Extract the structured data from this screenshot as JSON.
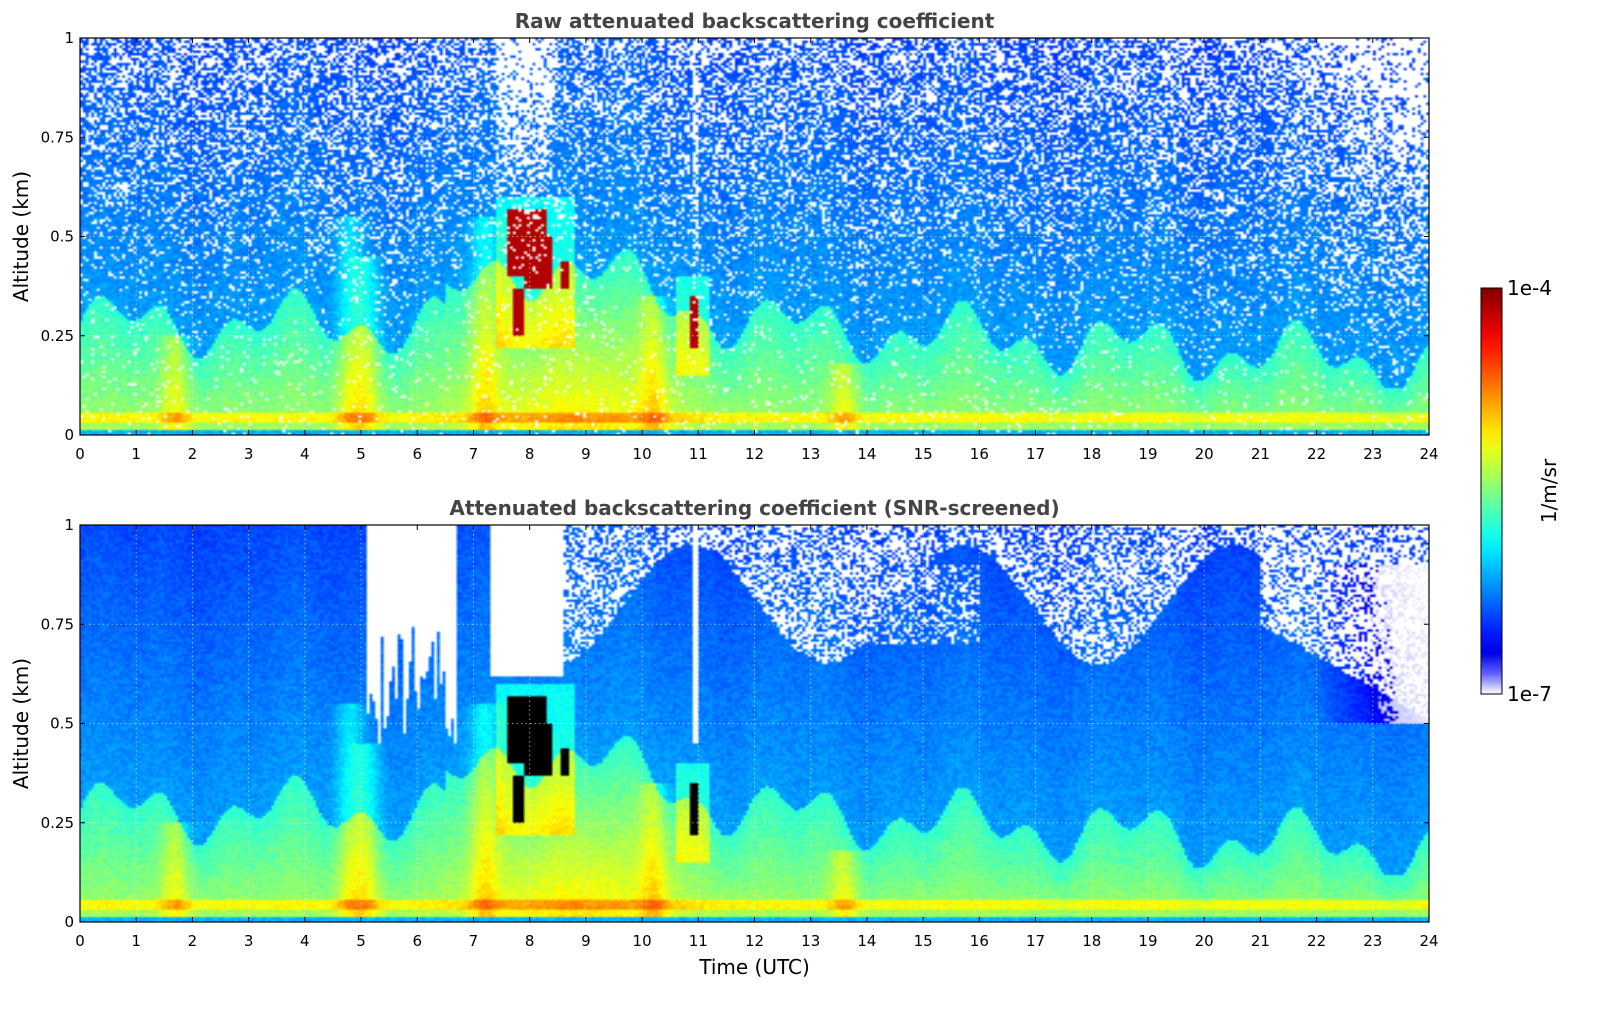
{
  "chart_data": [
    {
      "type": "heatmap",
      "title": "Raw attenuated backscattering coefficient",
      "xlabel": "",
      "ylabel": "Altitude (km)",
      "xlim": [
        0,
        24
      ],
      "ylim": [
        0,
        1
      ],
      "xticks": [
        0,
        1,
        2,
        3,
        4,
        5,
        6,
        7,
        8,
        9,
        10,
        11,
        12,
        13,
        14,
        15,
        16,
        17,
        18,
        19,
        20,
        21,
        22,
        23,
        24
      ],
      "yticks": [
        0,
        0.25,
        0.5,
        0.75,
        1
      ],
      "ytick_labels": [
        "0",
        "0.25",
        "0.5",
        "0.75",
        "1"
      ],
      "grid": true,
      "screened": false,
      "features": [
        {
          "kind": "boundary_layer_aerosol",
          "time_range": [
            0,
            24
          ],
          "top_km": 0.3
        },
        {
          "kind": "strong_layer",
          "time_range": [
            7.6,
            8.7
          ],
          "altitude_range": [
            0.25,
            0.57
          ]
        },
        {
          "kind": "strong_layer",
          "time_range": [
            10.85,
            11.0
          ],
          "altitude_range": [
            0.22,
            0.35
          ]
        }
      ]
    },
    {
      "type": "heatmap",
      "title": "Attenuated backscattering coefficient (SNR-screened)",
      "xlabel": "Time (UTC)",
      "ylabel": "Altitude (km)",
      "xlim": [
        0,
        24
      ],
      "ylim": [
        0,
        1
      ],
      "xticks": [
        0,
        1,
        2,
        3,
        4,
        5,
        6,
        7,
        8,
        9,
        10,
        11,
        12,
        13,
        14,
        15,
        16,
        17,
        18,
        19,
        20,
        21,
        22,
        23,
        24
      ],
      "yticks": [
        0,
        0.25,
        0.5,
        0.75,
        1
      ],
      "ytick_labels": [
        "0",
        "0.25",
        "0.5",
        "0.75",
        "1"
      ],
      "grid": true,
      "screened": true,
      "features": [
        {
          "kind": "boundary_layer_aerosol",
          "time_range": [
            0,
            24
          ],
          "top_km": 0.3
        },
        {
          "kind": "saturated_layer",
          "time_range": [
            7.6,
            8.7
          ],
          "altitude_range": [
            0.25,
            0.57
          ]
        },
        {
          "kind": "saturated_layer",
          "time_range": [
            10.85,
            11.0
          ],
          "altitude_range": [
            0.22,
            0.35
          ]
        }
      ]
    }
  ],
  "colorbar": {
    "label": "1/m/sr",
    "max_label": "1e-4",
    "min_label": "1e-7",
    "scale": "log",
    "range": [
      1e-07,
      0.0001
    ],
    "colormap": "jet"
  }
}
